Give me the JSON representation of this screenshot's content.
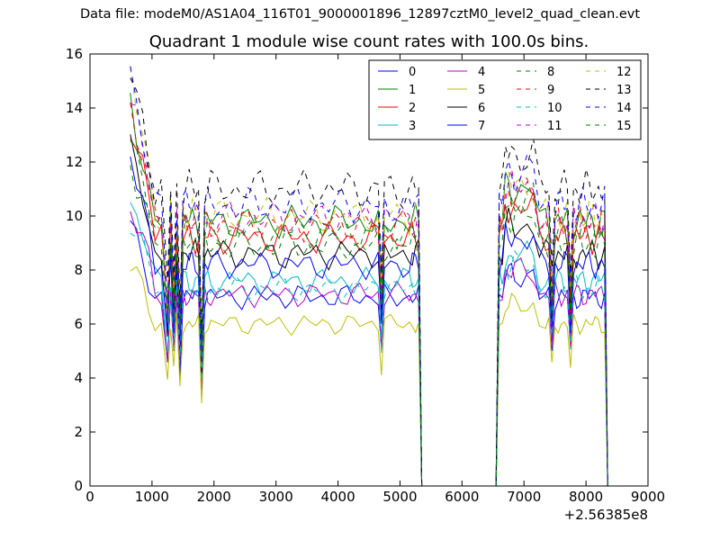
{
  "chart_data": {
    "type": "line",
    "suptitle": "Data file: modeM0/AS1A04_116T01_9000001896_12897cztM0_level2_quad_clean.evt",
    "title": "Quadrant 1 module wise count rates with 100.0s bins.",
    "xlabel": "",
    "ylabel": "",
    "x_offset_label": "+2.56385e8",
    "xlim": [
      0,
      9000
    ],
    "ylim": [
      0,
      16
    ],
    "xticks": [
      0,
      1000,
      2000,
      3000,
      4000,
      5000,
      6000,
      7000,
      8000,
      9000
    ],
    "yticks": [
      0,
      2,
      4,
      6,
      8,
      10,
      12,
      14,
      16
    ],
    "grid": false,
    "legend_position": "top-right",
    "legend_columns": 4,
    "x": [
      650,
      750,
      850,
      950,
      1050,
      1150,
      1250,
      1300,
      1350,
      1400,
      1450,
      1500,
      1550,
      1600,
      1650,
      1700,
      1750,
      1800,
      1850,
      1900,
      1950,
      2050,
      2150,
      2250,
      2350,
      2450,
      2550,
      2650,
      2750,
      2850,
      2950,
      3050,
      3150,
      3250,
      3350,
      3450,
      3550,
      3650,
      3750,
      3850,
      3950,
      4050,
      4150,
      4250,
      4350,
      4450,
      4550,
      4650,
      4700,
      4750,
      4850,
      4950,
      5050,
      5150,
      5200,
      5250,
      5300,
      5350,
      5400,
      6550,
      6600,
      6650,
      6700,
      6750,
      6800,
      6850,
      6950,
      7050,
      7150,
      7250,
      7350,
      7400,
      7450,
      7500,
      7550,
      7600,
      7650,
      7700,
      7750,
      7800,
      7850,
      7900,
      7950,
      8000,
      8050,
      8100,
      8150,
      8200,
      8250,
      8300,
      8350
    ],
    "series": [
      {
        "name": "0",
        "color": "#0000ff",
        "dash": false,
        "level": 7.0
      },
      {
        "name": "1",
        "color": "#008000",
        "dash": false,
        "level": 9.8
      },
      {
        "name": "2",
        "color": "#ff0000",
        "dash": false,
        "level": 9.2
      },
      {
        "name": "3",
        "color": "#00bfbf",
        "dash": false,
        "level": 7.6
      },
      {
        "name": "4",
        "color": "#bf00bf",
        "dash": false,
        "level": 7.1
      },
      {
        "name": "5",
        "color": "#bfbf00",
        "dash": false,
        "level": 6.0
      },
      {
        "name": "6",
        "color": "#000000",
        "dash": false,
        "level": 8.6
      },
      {
        "name": "7",
        "color": "#0000ff",
        "dash": false,
        "level": 8.2
      },
      {
        "name": "8",
        "color": "#008000",
        "dash": true,
        "level": 9.4
      },
      {
        "name": "9",
        "color": "#ff0000",
        "dash": true,
        "level": 9.7
      },
      {
        "name": "10",
        "color": "#00bfbf",
        "dash": true,
        "level": 7.3
      },
      {
        "name": "11",
        "color": "#bf00bf",
        "dash": true,
        "level": 9.9
      },
      {
        "name": "12",
        "color": "#bfbf00",
        "dash": true,
        "level": 10.0
      },
      {
        "name": "13",
        "color": "#000000",
        "dash": true,
        "level": 11.0
      },
      {
        "name": "14",
        "color": "#0000ff",
        "dash": true,
        "level": 10.4
      },
      {
        "name": "15",
        "color": "#008000",
        "dash": true,
        "level": 8.9
      }
    ]
  }
}
